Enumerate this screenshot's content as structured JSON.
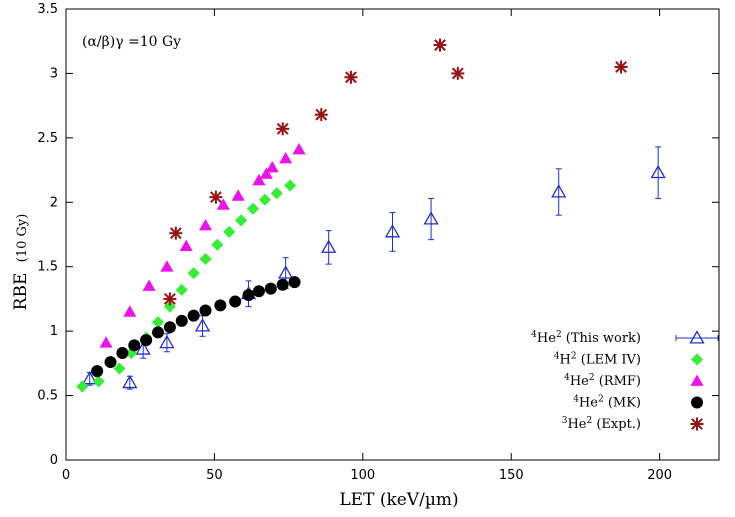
{
  "chart_data": {
    "type": "scatter",
    "xlabel": "LET (keV/µm)",
    "ylabel_main": "RBE",
    "ylabel_sub": "(10 Gy)",
    "annotation": "(α/β)γ =10 Gy",
    "xlim": [
      0,
      220
    ],
    "ylim": [
      0,
      3.5
    ],
    "x_ticks": [
      "0",
      "50",
      "100",
      "150",
      "200"
    ],
    "y_ticks": [
      "0",
      "0.5",
      "1",
      "1.5",
      "2",
      "2.5",
      "3",
      "3.5"
    ],
    "grid": false,
    "legend_position": "bottom-right",
    "series": [
      {
        "name": "4He2 (This work)",
        "label_sup1": "4",
        "label_base": "He",
        "label_sup2": "2",
        "label_tail": " (This work)",
        "marker": "open-triangle",
        "color": "#1f2ecf",
        "points": [
          {
            "x": 8,
            "y": 0.63,
            "err": 0.05
          },
          {
            "x": 21.5,
            "y": 0.6,
            "err": 0.05
          },
          {
            "x": 26,
            "y": 0.86,
            "err": 0.07
          },
          {
            "x": 34,
            "y": 0.91,
            "err": 0.07
          },
          {
            "x": 46,
            "y": 1.04,
            "err": 0.08
          },
          {
            "x": 61.5,
            "y": 1.29,
            "err": 0.1
          },
          {
            "x": 74,
            "y": 1.45,
            "err": 0.12
          },
          {
            "x": 88.5,
            "y": 1.65,
            "err": 0.13
          },
          {
            "x": 110,
            "y": 1.77,
            "err": 0.15
          },
          {
            "x": 123,
            "y": 1.87,
            "err": 0.16
          },
          {
            "x": 166,
            "y": 2.08,
            "err": 0.18
          },
          {
            "x": 199.5,
            "y": 2.23,
            "err": 0.2
          }
        ]
      },
      {
        "name": "4H2 (LEM IV)",
        "label_sup1": "4",
        "label_base": "H",
        "label_sup2": "2",
        "label_tail": " (LEM IV)",
        "marker": "diamond",
        "color": "#33ee33",
        "points": [
          {
            "x": 5.5,
            "y": 0.57
          },
          {
            "x": 11,
            "y": 0.61
          },
          {
            "x": 18,
            "y": 0.71
          },
          {
            "x": 22,
            "y": 0.83
          },
          {
            "x": 27,
            "y": 0.95
          },
          {
            "x": 31,
            "y": 1.07
          },
          {
            "x": 35,
            "y": 1.19
          },
          {
            "x": 39,
            "y": 1.32
          },
          {
            "x": 43,
            "y": 1.45
          },
          {
            "x": 47,
            "y": 1.56
          },
          {
            "x": 51,
            "y": 1.67
          },
          {
            "x": 55,
            "y": 1.77
          },
          {
            "x": 59,
            "y": 1.86
          },
          {
            "x": 63,
            "y": 1.95
          },
          {
            "x": 67,
            "y": 2.02
          },
          {
            "x": 71,
            "y": 2.07
          },
          {
            "x": 75.5,
            "y": 2.13
          }
        ]
      },
      {
        "name": "4He2 (RMF)",
        "label_sup1": "4",
        "label_base": "He",
        "label_sup2": "2",
        "label_tail": " (RMF)",
        "marker": "filled-triangle",
        "color": "#ee10ee",
        "points": [
          {
            "x": 13.5,
            "y": 0.91
          },
          {
            "x": 21.5,
            "y": 1.15
          },
          {
            "x": 28,
            "y": 1.35
          },
          {
            "x": 34,
            "y": 1.5
          },
          {
            "x": 40.5,
            "y": 1.66
          },
          {
            "x": 47,
            "y": 1.82
          },
          {
            "x": 53,
            "y": 1.98
          },
          {
            "x": 58,
            "y": 2.05
          },
          {
            "x": 65,
            "y": 2.17
          },
          {
            "x": 67.5,
            "y": 2.22
          },
          {
            "x": 69.5,
            "y": 2.27
          },
          {
            "x": 74,
            "y": 2.34
          },
          {
            "x": 78.5,
            "y": 2.41
          }
        ]
      },
      {
        "name": "4He2 (MK)",
        "label_sup1": "4",
        "label_base": "He",
        "label_sup2": "2",
        "label_tail": " (MK)",
        "marker": "filled-circle",
        "color": "#000000",
        "points": [
          {
            "x": 10.5,
            "y": 0.69
          },
          {
            "x": 15,
            "y": 0.76
          },
          {
            "x": 19,
            "y": 0.83
          },
          {
            "x": 23,
            "y": 0.89
          },
          {
            "x": 27,
            "y": 0.93
          },
          {
            "x": 31,
            "y": 0.99
          },
          {
            "x": 35,
            "y": 1.03
          },
          {
            "x": 39,
            "y": 1.08
          },
          {
            "x": 43,
            "y": 1.12
          },
          {
            "x": 47,
            "y": 1.16
          },
          {
            "x": 52,
            "y": 1.2
          },
          {
            "x": 57,
            "y": 1.23
          },
          {
            "x": 61.5,
            "y": 1.28
          },
          {
            "x": 65,
            "y": 1.31
          },
          {
            "x": 69,
            "y": 1.33
          },
          {
            "x": 73,
            "y": 1.36
          },
          {
            "x": 77,
            "y": 1.38
          }
        ]
      },
      {
        "name": "3He2 (Expt.)",
        "label_sup1": "3",
        "label_base": "He",
        "label_sup2": "2",
        "label_tail": " (Expt.)",
        "marker": "asterisk",
        "color": "#9a1010",
        "points": [
          {
            "x": 35,
            "y": 1.25
          },
          {
            "x": 37,
            "y": 1.76
          },
          {
            "x": 50.5,
            "y": 2.04
          },
          {
            "x": 73,
            "y": 2.57
          },
          {
            "x": 86,
            "y": 2.68
          },
          {
            "x": 96,
            "y": 2.97
          },
          {
            "x": 126,
            "y": 3.22
          },
          {
            "x": 132,
            "y": 3.0
          },
          {
            "x": 187,
            "y": 3.05
          }
        ]
      }
    ]
  }
}
